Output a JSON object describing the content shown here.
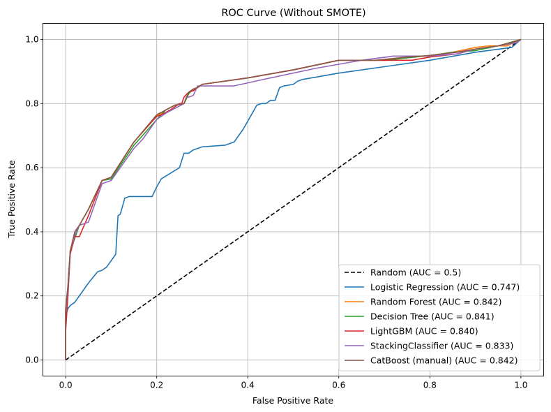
{
  "chart_data": {
    "type": "line",
    "title": "ROC Curve (Without SMOTE)",
    "xlabel": "False Positive Rate",
    "ylabel": "True Positive Rate",
    "xlim": [
      -0.05,
      1.05
    ],
    "ylim": [
      -0.05,
      1.05
    ],
    "xticks": [
      "0.0",
      "0.2",
      "0.4",
      "0.6",
      "0.8",
      "1.0"
    ],
    "yticks": [
      "0.0",
      "0.2",
      "0.4",
      "0.6",
      "0.8",
      "1.0"
    ],
    "grid": true,
    "legend_position": "lower-right",
    "series": [
      {
        "name": "Random (AUC = 0.5)",
        "color": "#000000",
        "dashed": true,
        "x": [
          0,
          1
        ],
        "y": [
          0,
          1
        ]
      },
      {
        "name": "Logistic Regression (AUC = 0.747)",
        "color": "#1f77b4",
        "x": [
          0,
          0,
          0.005,
          0.01,
          0.02,
          0.03,
          0.05,
          0.07,
          0.08,
          0.09,
          0.1,
          0.11,
          0.115,
          0.12,
          0.13,
          0.14,
          0.15,
          0.17,
          0.19,
          0.2,
          0.21,
          0.25,
          0.26,
          0.27,
          0.28,
          0.29,
          0.3,
          0.35,
          0.37,
          0.39,
          0.42,
          0.43,
          0.44,
          0.45,
          0.46,
          0.47,
          0.48,
          0.5,
          0.51,
          0.52,
          0.6,
          0.7,
          0.8,
          0.9,
          0.98,
          1
        ],
        "y": [
          0,
          0.14,
          0.16,
          0.17,
          0.18,
          0.2,
          0.24,
          0.275,
          0.28,
          0.29,
          0.31,
          0.33,
          0.45,
          0.455,
          0.505,
          0.51,
          0.51,
          0.51,
          0.51,
          0.54,
          0.565,
          0.6,
          0.645,
          0.645,
          0.655,
          0.66,
          0.665,
          0.67,
          0.68,
          0.72,
          0.795,
          0.8,
          0.8,
          0.81,
          0.81,
          0.85,
          0.855,
          0.86,
          0.87,
          0.875,
          0.895,
          0.915,
          0.935,
          0.96,
          0.975,
          1
        ]
      },
      {
        "name": "Random Forest (AUC = 0.842)",
        "color": "#ff7f0e",
        "x": [
          0,
          0,
          0.005,
          0.01,
          0.02,
          0.03,
          0.05,
          0.08,
          0.1,
          0.15,
          0.2,
          0.22,
          0.24,
          0.26,
          0.27,
          0.28,
          0.29,
          0.3,
          0.4,
          0.5,
          0.6,
          0.7,
          0.8,
          0.85,
          0.9,
          0.93,
          0.97,
          1
        ],
        "y": [
          0,
          0.15,
          0.22,
          0.34,
          0.38,
          0.42,
          0.47,
          0.56,
          0.57,
          0.68,
          0.76,
          0.78,
          0.795,
          0.8,
          0.83,
          0.845,
          0.85,
          0.86,
          0.88,
          0.905,
          0.935,
          0.935,
          0.95,
          0.96,
          0.975,
          0.98,
          0.98,
          1
        ]
      },
      {
        "name": "Decision Tree (AUC = 0.841)",
        "color": "#2ca02c",
        "x": [
          0,
          0,
          0.005,
          0.01,
          0.02,
          0.03,
          0.05,
          0.08,
          0.1,
          0.15,
          0.2,
          0.22,
          0.24,
          0.26,
          0.27,
          0.28,
          0.29,
          0.3,
          0.4,
          0.5,
          0.6,
          0.7,
          0.8,
          0.85,
          0.9,
          0.95,
          1
        ],
        "y": [
          0,
          0.16,
          0.23,
          0.34,
          0.38,
          0.42,
          0.47,
          0.56,
          0.565,
          0.67,
          0.75,
          0.78,
          0.795,
          0.8,
          0.83,
          0.845,
          0.85,
          0.86,
          0.88,
          0.905,
          0.935,
          0.935,
          0.95,
          0.96,
          0.965,
          0.98,
          1
        ]
      },
      {
        "name": "LightGBM (AUC = 0.840)",
        "color": "#d62728",
        "x": [
          0,
          0,
          0.005,
          0.01,
          0.02,
          0.03,
          0.05,
          0.08,
          0.1,
          0.15,
          0.19,
          0.2,
          0.21,
          0.23,
          0.25,
          0.255,
          0.26,
          0.27,
          0.28,
          0.29,
          0.3,
          0.4,
          0.5,
          0.6,
          0.7,
          0.76,
          0.8,
          0.86,
          0.9,
          0.95,
          0.98,
          1
        ],
        "y": [
          0,
          0.09,
          0.2,
          0.33,
          0.385,
          0.385,
          0.45,
          0.56,
          0.57,
          0.68,
          0.745,
          0.76,
          0.765,
          0.78,
          0.8,
          0.8,
          0.82,
          0.835,
          0.84,
          0.85,
          0.86,
          0.88,
          0.905,
          0.935,
          0.935,
          0.935,
          0.945,
          0.955,
          0.97,
          0.98,
          0.99,
          1
        ]
      },
      {
        "name": "StackingClassifier (AUC = 0.833)",
        "color": "#9467bd",
        "x": [
          0,
          0,
          0.005,
          0.01,
          0.02,
          0.03,
          0.05,
          0.08,
          0.1,
          0.15,
          0.17,
          0.2,
          0.22,
          0.24,
          0.26,
          0.265,
          0.27,
          0.28,
          0.29,
          0.3,
          0.37,
          0.45,
          0.55,
          0.65,
          0.72,
          0.8,
          0.86,
          0.9,
          0.95,
          0.99,
          1
        ],
        "y": [
          0,
          0.15,
          0.22,
          0.34,
          0.39,
          0.42,
          0.43,
          0.55,
          0.56,
          0.66,
          0.69,
          0.75,
          0.77,
          0.785,
          0.8,
          0.82,
          0.82,
          0.825,
          0.855,
          0.855,
          0.855,
          0.88,
          0.91,
          0.935,
          0.948,
          0.948,
          0.955,
          0.97,
          0.98,
          0.99,
          1
        ]
      },
      {
        "name": "CatBoost (manual) (AUC = 0.842)",
        "color": "#8c564b",
        "x": [
          0,
          0,
          0.005,
          0.01,
          0.02,
          0.03,
          0.05,
          0.08,
          0.1,
          0.15,
          0.2,
          0.22,
          0.24,
          0.26,
          0.27,
          0.28,
          0.29,
          0.3,
          0.4,
          0.5,
          0.6,
          0.68,
          0.75,
          0.8,
          0.86,
          0.9,
          0.95,
          0.98,
          1
        ],
        "y": [
          0,
          0.16,
          0.23,
          0.34,
          0.4,
          0.42,
          0.47,
          0.56,
          0.57,
          0.68,
          0.765,
          0.78,
          0.795,
          0.8,
          0.835,
          0.845,
          0.85,
          0.86,
          0.88,
          0.905,
          0.935,
          0.935,
          0.945,
          0.95,
          0.96,
          0.97,
          0.98,
          0.99,
          1
        ]
      }
    ]
  }
}
